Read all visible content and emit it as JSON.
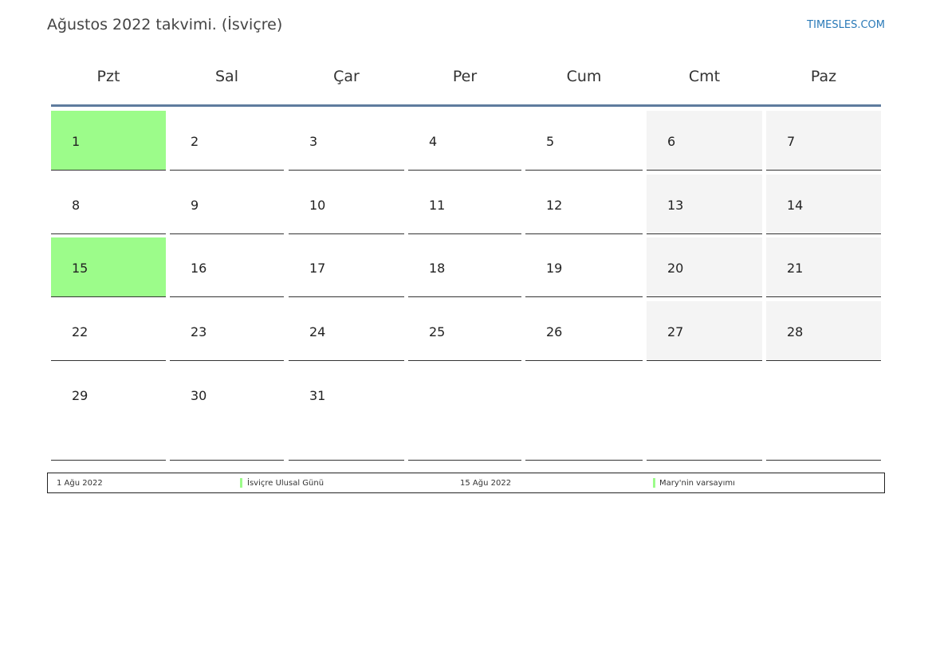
{
  "title": "Ağustos 2022 takvimi. (İsviçre)",
  "site_link": "TIMESLES.COM",
  "colors": {
    "holiday": "#9cfc8a",
    "weekend": "#f4f4f4",
    "header_line": "#5e7b9e",
    "link": "#2a7ab8"
  },
  "weekdays": [
    "Pzt",
    "Sal",
    "Çar",
    "Per",
    "Cum",
    "Cmt",
    "Paz"
  ],
  "weeks": [
    [
      {
        "day": "1",
        "type": "holiday"
      },
      {
        "day": "2",
        "type": "normal"
      },
      {
        "day": "3",
        "type": "normal"
      },
      {
        "day": "4",
        "type": "normal"
      },
      {
        "day": "5",
        "type": "normal"
      },
      {
        "day": "6",
        "type": "weekend"
      },
      {
        "day": "7",
        "type": "weekend"
      }
    ],
    [
      {
        "day": "8",
        "type": "normal"
      },
      {
        "day": "9",
        "type": "normal"
      },
      {
        "day": "10",
        "type": "normal"
      },
      {
        "day": "11",
        "type": "normal"
      },
      {
        "day": "12",
        "type": "normal"
      },
      {
        "day": "13",
        "type": "weekend"
      },
      {
        "day": "14",
        "type": "weekend"
      }
    ],
    [
      {
        "day": "15",
        "type": "holiday"
      },
      {
        "day": "16",
        "type": "normal"
      },
      {
        "day": "17",
        "type": "normal"
      },
      {
        "day": "18",
        "type": "normal"
      },
      {
        "day": "19",
        "type": "normal"
      },
      {
        "day": "20",
        "type": "weekend"
      },
      {
        "day": "21",
        "type": "weekend"
      }
    ],
    [
      {
        "day": "22",
        "type": "normal"
      },
      {
        "day": "23",
        "type": "normal"
      },
      {
        "day": "24",
        "type": "normal"
      },
      {
        "day": "25",
        "type": "normal"
      },
      {
        "day": "26",
        "type": "normal"
      },
      {
        "day": "27",
        "type": "weekend"
      },
      {
        "day": "28",
        "type": "weekend"
      }
    ],
    [
      {
        "day": "29",
        "type": "normal"
      },
      {
        "day": "30",
        "type": "normal"
      },
      {
        "day": "31",
        "type": "normal"
      },
      {
        "day": "",
        "type": "empty"
      },
      {
        "day": "",
        "type": "empty"
      },
      {
        "day": "",
        "type": "empty"
      },
      {
        "day": "",
        "type": "empty"
      }
    ]
  ],
  "holidays": [
    {
      "date": "1 Ağu 2022",
      "name": "İsviçre Ulusal Günü"
    },
    {
      "date": "15 Ağu 2022",
      "name": "Mary'nin varsayımı"
    }
  ]
}
